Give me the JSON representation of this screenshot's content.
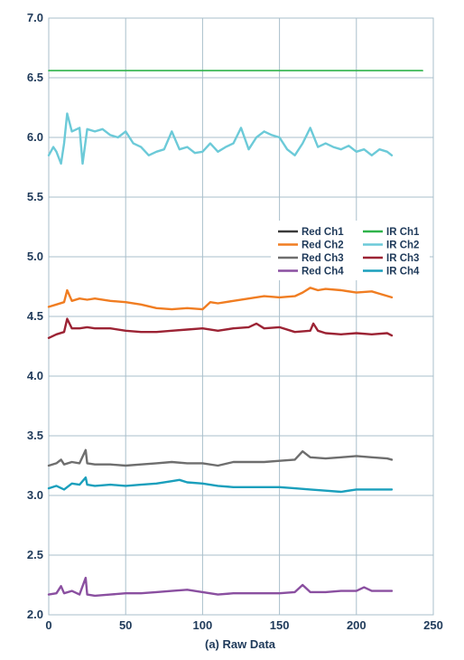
{
  "chart_data": {
    "type": "line",
    "title": "",
    "xlabel": "(a) Raw Data",
    "ylabel": "",
    "xlim": [
      0,
      250
    ],
    "ylim": [
      2.0,
      7.0
    ],
    "xticks": [
      "0",
      "50",
      "100",
      "150",
      "200",
      "250"
    ],
    "yticks": [
      "2.0",
      "2.5",
      "3.0",
      "3.5",
      "4.0",
      "4.5",
      "5.0",
      "5.5",
      "6.0",
      "6.5",
      "7.0"
    ],
    "grid": true,
    "legend_position": "right",
    "series": [
      {
        "name": "Red Ch1",
        "color": "#3a3a3a",
        "x": [],
        "y": []
      },
      {
        "name": "Red Ch2",
        "color": "#f07d22",
        "x": [
          0,
          5,
          10,
          12,
          15,
          20,
          25,
          30,
          40,
          50,
          60,
          70,
          80,
          90,
          100,
          105,
          110,
          120,
          130,
          140,
          150,
          160,
          165,
          170,
          175,
          180,
          190,
          200,
          210,
          215,
          223
        ],
        "y": [
          4.58,
          4.6,
          4.62,
          4.72,
          4.63,
          4.65,
          4.64,
          4.65,
          4.63,
          4.62,
          4.6,
          4.57,
          4.56,
          4.57,
          4.56,
          4.62,
          4.61,
          4.63,
          4.65,
          4.67,
          4.66,
          4.67,
          4.7,
          4.74,
          4.72,
          4.73,
          4.72,
          4.7,
          4.71,
          4.69,
          4.66
        ]
      },
      {
        "name": "Red Ch3",
        "color": "#6e6e6e",
        "x": [
          0,
          5,
          8,
          10,
          15,
          20,
          24,
          25,
          30,
          40,
          50,
          60,
          70,
          80,
          90,
          100,
          110,
          120,
          130,
          140,
          150,
          160,
          165,
          170,
          180,
          190,
          200,
          210,
          220,
          223
        ],
        "y": [
          3.25,
          3.27,
          3.3,
          3.26,
          3.28,
          3.27,
          3.38,
          3.27,
          3.26,
          3.26,
          3.25,
          3.26,
          3.27,
          3.28,
          3.27,
          3.27,
          3.25,
          3.28,
          3.28,
          3.28,
          3.29,
          3.3,
          3.37,
          3.32,
          3.31,
          3.32,
          3.33,
          3.32,
          3.31,
          3.3
        ]
      },
      {
        "name": "Red Ch4",
        "color": "#8a4fa0",
        "x": [
          0,
          5,
          8,
          10,
          15,
          20,
          24,
          25,
          30,
          40,
          50,
          60,
          70,
          80,
          90,
          100,
          110,
          120,
          130,
          140,
          150,
          160,
          165,
          170,
          180,
          190,
          200,
          205,
          210,
          223
        ],
        "y": [
          2.17,
          2.18,
          2.24,
          2.18,
          2.2,
          2.17,
          2.31,
          2.17,
          2.16,
          2.17,
          2.18,
          2.18,
          2.19,
          2.2,
          2.21,
          2.19,
          2.17,
          2.18,
          2.18,
          2.18,
          2.18,
          2.19,
          2.25,
          2.19,
          2.19,
          2.2,
          2.2,
          2.23,
          2.2,
          2.2
        ]
      },
      {
        "name": "IR Ch1",
        "color": "#2fb34a",
        "x": [
          0,
          243
        ],
        "y": [
          6.56,
          6.56
        ]
      },
      {
        "name": "IR Ch2",
        "color": "#6ccad8",
        "x": [
          0,
          3,
          5,
          8,
          10,
          12,
          15,
          20,
          22,
          25,
          30,
          35,
          40,
          45,
          50,
          55,
          60,
          65,
          70,
          75,
          80,
          85,
          90,
          95,
          100,
          105,
          110,
          115,
          120,
          125,
          130,
          135,
          140,
          145,
          150,
          155,
          160,
          165,
          170,
          175,
          180,
          185,
          190,
          195,
          200,
          205,
          210,
          215,
          220,
          223
        ],
        "y": [
          5.85,
          5.92,
          5.88,
          5.78,
          5.95,
          6.2,
          6.05,
          6.08,
          5.78,
          6.07,
          6.05,
          6.07,
          6.02,
          6.0,
          6.05,
          5.95,
          5.92,
          5.85,
          5.88,
          5.9,
          6.05,
          5.9,
          5.92,
          5.87,
          5.88,
          5.95,
          5.88,
          5.92,
          5.95,
          6.08,
          5.9,
          6.0,
          6.05,
          6.02,
          6.0,
          5.9,
          5.85,
          5.95,
          6.08,
          5.92,
          5.95,
          5.92,
          5.9,
          5.93,
          5.88,
          5.9,
          5.85,
          5.9,
          5.88,
          5.85
        ]
      },
      {
        "name": "IR Ch3",
        "color": "#9c2334",
        "x": [
          0,
          5,
          10,
          12,
          15,
          20,
          25,
          30,
          40,
          50,
          60,
          70,
          80,
          90,
          100,
          110,
          120,
          130,
          135,
          140,
          150,
          160,
          170,
          172,
          175,
          180,
          190,
          200,
          210,
          220,
          223
        ],
        "y": [
          4.32,
          4.35,
          4.37,
          4.48,
          4.4,
          4.4,
          4.41,
          4.4,
          4.4,
          4.38,
          4.37,
          4.37,
          4.38,
          4.39,
          4.4,
          4.38,
          4.4,
          4.41,
          4.44,
          4.4,
          4.41,
          4.37,
          4.38,
          4.44,
          4.38,
          4.36,
          4.35,
          4.36,
          4.35,
          4.36,
          4.34
        ]
      },
      {
        "name": "IR Ch4",
        "color": "#1a9fbc",
        "x": [
          0,
          5,
          10,
          15,
          20,
          24,
          25,
          30,
          40,
          50,
          60,
          70,
          80,
          85,
          90,
          100,
          110,
          120,
          130,
          140,
          150,
          160,
          170,
          180,
          190,
          200,
          210,
          220,
          223
        ],
        "y": [
          3.06,
          3.08,
          3.05,
          3.1,
          3.09,
          3.15,
          3.09,
          3.08,
          3.09,
          3.08,
          3.09,
          3.1,
          3.12,
          3.13,
          3.11,
          3.1,
          3.08,
          3.07,
          3.07,
          3.07,
          3.07,
          3.06,
          3.05,
          3.04,
          3.03,
          3.05,
          3.05,
          3.05,
          3.05
        ]
      }
    ]
  }
}
